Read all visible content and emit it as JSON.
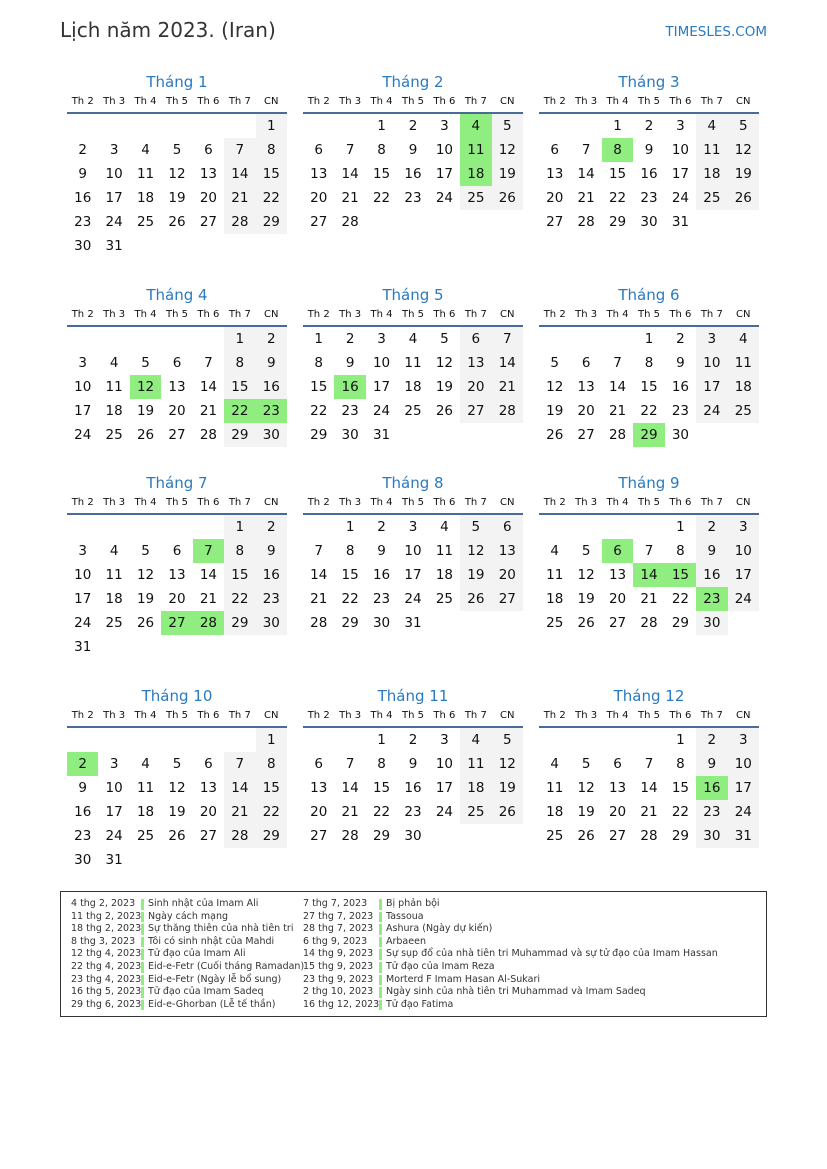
{
  "header": {
    "title": "Lịch năm 2023. (Iran)",
    "brand": "TIMESLES.COM"
  },
  "year": 2023,
  "weekdays": [
    "Th 2",
    "Th 3",
    "Th 4",
    "Th 5",
    "Th 6",
    "Th 7",
    "CN"
  ],
  "colors": {
    "accent": "#2a7abf",
    "holiday": "#90ee80",
    "weekend": "#f3f3f3"
  },
  "months": [
    {
      "label": "Tháng 1",
      "holidays": []
    },
    {
      "label": "Tháng 2",
      "holidays": [
        4,
        11,
        18
      ]
    },
    {
      "label": "Tháng 3",
      "holidays": [
        8
      ]
    },
    {
      "label": "Tháng 4",
      "holidays": [
        12,
        22,
        23
      ]
    },
    {
      "label": "Tháng 5",
      "holidays": [
        16
      ]
    },
    {
      "label": "Tháng 6",
      "holidays": [
        29
      ]
    },
    {
      "label": "Tháng 7",
      "holidays": [
        7,
        27,
        28
      ]
    },
    {
      "label": "Tháng 8",
      "holidays": []
    },
    {
      "label": "Tháng 9",
      "holidays": [
        6,
        14,
        15,
        23
      ]
    },
    {
      "label": "Tháng 10",
      "holidays": [
        2
      ]
    },
    {
      "label": "Tháng 11",
      "holidays": []
    },
    {
      "label": "Tháng 12",
      "holidays": [
        16
      ]
    }
  ],
  "holiday_list": [
    [
      {
        "date": "4 thg 2, 2023",
        "name": "Sinh nhật của Imam Ali"
      },
      {
        "date": "11 thg 2, 2023",
        "name": "Ngày cách mạng"
      },
      {
        "date": "18 thg 2, 2023",
        "name": "Sự thăng thiên của nhà tiên tri"
      },
      {
        "date": "8 thg 3, 2023",
        "name": "Tôi có sinh nhật của Mahdi"
      },
      {
        "date": "12 thg 4, 2023",
        "name": "Tử đạo của Imam Ali"
      },
      {
        "date": "22 thg 4, 2023",
        "name": "Eid-e-Fetr (Cuối tháng Ramadan)"
      },
      {
        "date": "23 thg 4, 2023",
        "name": "Eid-e-Fetr (Ngày lễ bổ sung)"
      },
      {
        "date": "16 thg 5, 2023",
        "name": "Tử đạo của Imam Sadeq"
      },
      {
        "date": "29 thg 6, 2023",
        "name": "Eid-e-Ghorban (Lễ tế thần)"
      }
    ],
    [
      {
        "date": "7 thg 7, 2023",
        "name": "Bị phản bội"
      },
      {
        "date": "27 thg 7, 2023",
        "name": "Tassoua"
      },
      {
        "date": "28 thg 7, 2023",
        "name": "Ashura (Ngày dự kiến)"
      },
      {
        "date": "6 thg 9, 2023",
        "name": "Arbaeen"
      },
      {
        "date": "14 thg 9, 2023",
        "name": "Sự sụp đổ của nhà tiên tri Muhammad và sự tử đạo của Imam Hassan"
      },
      {
        "date": "15 thg 9, 2023",
        "name": "Tử đạo của Imam Reza"
      },
      {
        "date": "23 thg 9, 2023",
        "name": "Morterd F Imam Hasan Al-Sukari"
      },
      {
        "date": "2 thg 10, 2023",
        "name": "Ngày sinh của nhà tiên tri Muhammad và Imam Sadeq"
      },
      {
        "date": "16 thg 12, 2023",
        "name": "Tử đạo Fatima"
      }
    ]
  ]
}
